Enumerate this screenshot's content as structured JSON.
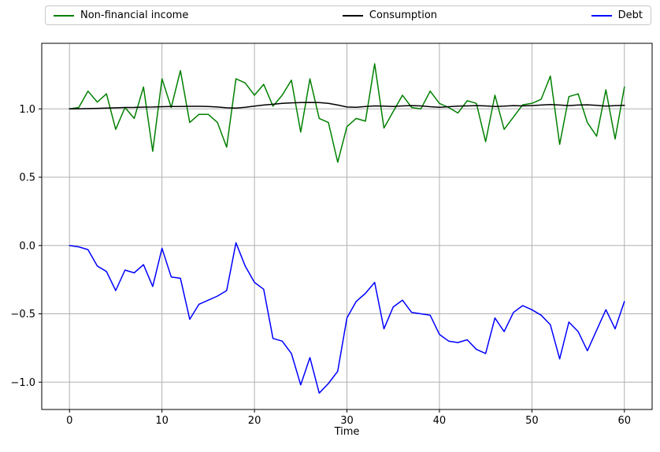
{
  "legend": {
    "items": [
      {
        "label": "Non-financial income",
        "color": "#008000"
      },
      {
        "label": "Consumption",
        "color": "#000000"
      },
      {
        "label": "Debt",
        "color": "#0000ff"
      }
    ]
  },
  "chart_data": {
    "type": "line",
    "title": "",
    "xlabel": "Time",
    "ylabel": "",
    "xlim": [
      -3,
      63
    ],
    "ylim": [
      -1.2,
      1.48
    ],
    "x_ticks": [
      0,
      10,
      20,
      30,
      40,
      50,
      60
    ],
    "y_ticks": [
      1.0,
      0.5,
      0.0,
      -0.5,
      -1.0
    ],
    "y_tick_labels": [
      "1.0",
      "0.5",
      "0.0",
      "−0.5",
      "−1.0"
    ],
    "grid": true,
    "legend_position": "top",
    "colors": {
      "grid": "#b0b0b0",
      "axis": "#000000",
      "legend_border": "#c9c9c9"
    },
    "x": [
      0,
      1,
      2,
      3,
      4,
      5,
      6,
      7,
      8,
      9,
      10,
      11,
      12,
      13,
      14,
      15,
      16,
      17,
      18,
      19,
      20,
      21,
      22,
      23,
      24,
      25,
      26,
      27,
      28,
      29,
      30,
      31,
      32,
      33,
      34,
      35,
      36,
      37,
      38,
      39,
      40,
      41,
      42,
      43,
      44,
      45,
      46,
      47,
      48,
      49,
      50,
      51,
      52,
      53,
      54,
      55,
      56,
      57,
      58,
      59,
      60
    ],
    "series": [
      {
        "name": "Non-financial income",
        "color": "#008000",
        "values": [
          1.0,
          1.01,
          1.13,
          1.05,
          1.11,
          0.85,
          1.01,
          0.93,
          1.16,
          0.69,
          1.22,
          1.01,
          1.28,
          0.9,
          0.96,
          0.96,
          0.9,
          0.72,
          1.22,
          1.19,
          1.1,
          1.18,
          1.02,
          1.1,
          1.21,
          0.83,
          1.22,
          0.93,
          0.9,
          0.61,
          0.87,
          0.93,
          0.91,
          1.33,
          0.86,
          0.98,
          1.1,
          1.01,
          1.0,
          1.13,
          1.04,
          1.01,
          0.97,
          1.06,
          1.04,
          0.76,
          1.1,
          0.85,
          0.94,
          1.03,
          1.04,
          1.07,
          1.24,
          0.74,
          1.09,
          1.11,
          0.9,
          0.8,
          1.14,
          0.78,
          1.16
        ]
      },
      {
        "name": "Consumption",
        "color": "#000000",
        "values": [
          1.0,
          1.001,
          1.002,
          1.004,
          1.006,
          1.008,
          1.01,
          1.011,
          1.013,
          1.014,
          1.016,
          1.017,
          1.018,
          1.019,
          1.019,
          1.018,
          1.014,
          1.008,
          1.006,
          1.012,
          1.02,
          1.028,
          1.034,
          1.04,
          1.044,
          1.046,
          1.047,
          1.046,
          1.04,
          1.028,
          1.014,
          1.012,
          1.018,
          1.022,
          1.02,
          1.018,
          1.022,
          1.024,
          1.022,
          1.016,
          1.012,
          1.016,
          1.02,
          1.022,
          1.024,
          1.022,
          1.018,
          1.02,
          1.024,
          1.022,
          1.024,
          1.028,
          1.032,
          1.028,
          1.024,
          1.028,
          1.03,
          1.026,
          1.02,
          1.024,
          1.026
        ]
      },
      {
        "name": "Debt",
        "color": "#0000ff",
        "values": [
          0.0,
          -0.01,
          -0.03,
          -0.15,
          -0.19,
          -0.33,
          -0.18,
          -0.2,
          -0.14,
          -0.3,
          -0.02,
          -0.23,
          -0.24,
          -0.54,
          -0.43,
          -0.4,
          -0.37,
          -0.33,
          0.02,
          -0.15,
          -0.27,
          -0.32,
          -0.68,
          -0.7,
          -0.79,
          -1.02,
          -0.82,
          -1.08,
          -1.01,
          -0.92,
          -0.53,
          -0.41,
          -0.35,
          -0.27,
          -0.61,
          -0.45,
          -0.4,
          -0.49,
          -0.5,
          -0.51,
          -0.65,
          -0.7,
          -0.71,
          -0.69,
          -0.76,
          -0.79,
          -0.53,
          -0.63,
          -0.49,
          -0.44,
          -0.47,
          -0.51,
          -0.58,
          -0.83,
          -0.56,
          -0.63,
          -0.77,
          -0.62,
          -0.47,
          -0.61,
          -0.41
        ]
      }
    ]
  }
}
